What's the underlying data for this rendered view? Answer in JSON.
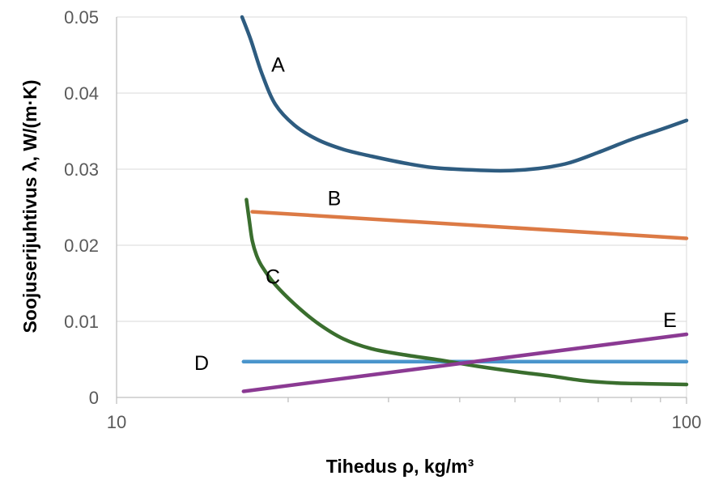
{
  "chart_data": {
    "type": "line",
    "title": "",
    "xlabel": "Tihedus ρ, kg/m³",
    "ylabel": "Soojuserijuhtivus λ, W/(m·K)",
    "xscale": "log",
    "xlim": [
      10,
      100
    ],
    "ylim": [
      0,
      0.05
    ],
    "xticks": [
      10,
      100
    ],
    "xtick_labels": [
      "10",
      "100"
    ],
    "yticks": [
      0,
      0.01,
      0.02,
      0.03,
      0.04,
      0.05
    ],
    "ytick_labels": [
      "0",
      "0.01",
      "0.02",
      "0.03",
      "0.04",
      "0.05"
    ],
    "grid": "horizontal",
    "legend": "inline labels",
    "series": [
      {
        "name": "A",
        "color": "#2e5c80",
        "x": [
          16.6,
          17.2,
          18.0,
          19.0,
          20.5,
          22.5,
          25.0,
          28.0,
          32.0,
          36.0,
          42.0,
          48.0,
          55.0,
          62.0,
          70.0,
          80.0,
          90.0,
          100.0
        ],
        "y": [
          0.05,
          0.047,
          0.0425,
          0.0385,
          0.0358,
          0.0339,
          0.0326,
          0.0317,
          0.0308,
          0.0302,
          0.0299,
          0.0298,
          0.0301,
          0.0308,
          0.0322,
          0.0339,
          0.0352,
          0.0364
        ]
      },
      {
        "name": "B",
        "color": "#dc7a45",
        "x": [
          17.3,
          100.0
        ],
        "y": [
          0.0244,
          0.0209
        ]
      },
      {
        "name": "C",
        "color": "#3a6e2e",
        "x": [
          16.9,
          17.1,
          17.3,
          17.6,
          18.0,
          19.0,
          20.5,
          22.5,
          25.0,
          28.0,
          32.0,
          37.0,
          43.0,
          50.0,
          58.0,
          66.0,
          75.0,
          85.0,
          100.0
        ],
        "y": [
          0.026,
          0.0232,
          0.0206,
          0.0187,
          0.0172,
          0.0148,
          0.0123,
          0.0098,
          0.0077,
          0.0064,
          0.0056,
          0.0049,
          0.0041,
          0.0034,
          0.0028,
          0.0022,
          0.0019,
          0.0018,
          0.0017
        ]
      },
      {
        "name": "D",
        "color": "#4a95cc",
        "x": [
          16.7,
          100.0
        ],
        "y": [
          0.0047,
          0.0047
        ]
      },
      {
        "name": "E",
        "color": "#8b3a93",
        "x": [
          16.7,
          100.0
        ],
        "y": [
          0.0008,
          0.0083
        ]
      }
    ],
    "annotations": [
      {
        "text": "A",
        "x": 19.2,
        "y": 0.0438
      },
      {
        "text": "B",
        "x": 24.1,
        "y": 0.0262
      },
      {
        "text": "C",
        "x": 18.8,
        "y": 0.0159
      },
      {
        "text": "D",
        "x": 14.1,
        "y": 0.0046
      },
      {
        "text": "E",
        "x": 93.5,
        "y": 0.0102
      }
    ]
  }
}
